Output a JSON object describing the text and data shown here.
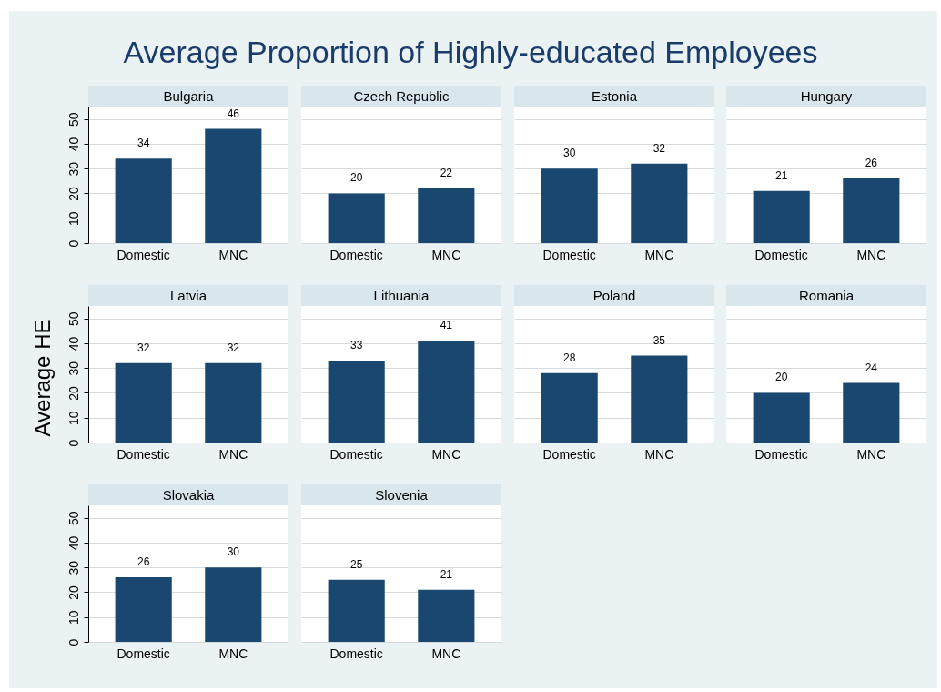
{
  "chart_data": [
    {
      "type": "other",
      "title": "Average Proportion of Highly-educated Employees",
      "ylabel": "Average HE"
    },
    {
      "type": "bar",
      "title": "Bulgaria",
      "categories": [
        "Domestic",
        "MNC"
      ],
      "values": [
        34,
        46
      ],
      "color": "#1a476f",
      "ylim": [
        0,
        55
      ],
      "yticks": [
        0,
        10,
        20,
        30,
        40,
        50
      ],
      "grid": "y",
      "data_labels": true
    },
    {
      "type": "bar",
      "title": "Czech Republic",
      "categories": [
        "Domestic",
        "MNC"
      ],
      "values": [
        20,
        22
      ],
      "color": "#1a476f",
      "ylim": [
        0,
        55
      ],
      "yticks": [
        0,
        10,
        20,
        30,
        40,
        50
      ],
      "grid": "y",
      "data_labels": true,
      "tick_labels": "x"
    },
    {
      "type": "bar",
      "title": "Estonia",
      "categories": [
        "Domestic",
        "MNC"
      ],
      "values": [
        30,
        32
      ],
      "color": "#1a476f",
      "ylim": [
        0,
        55
      ],
      "yticks": [
        0,
        10,
        20,
        30,
        40,
        50
      ],
      "grid": "y",
      "data_labels": true,
      "tick_labels": "x"
    },
    {
      "type": "bar",
      "title": "Hungary",
      "categories": [
        "Domestic",
        "MNC"
      ],
      "values": [
        21,
        26
      ],
      "color": "#1a476f",
      "ylim": [
        0,
        55
      ],
      "yticks": [
        0,
        10,
        20,
        30,
        40,
        50
      ],
      "grid": "y",
      "data_labels": true,
      "tick_labels": "x"
    },
    {
      "type": "bar",
      "title": "Latvia",
      "categories": [
        "Domestic",
        "MNC"
      ],
      "values": [
        32,
        32
      ],
      "color": "#1a476f",
      "ylim": [
        0,
        55
      ],
      "yticks": [
        0,
        10,
        20,
        30,
        40,
        50
      ],
      "grid": "y",
      "data_labels": true
    },
    {
      "type": "bar",
      "title": "Lithuania",
      "categories": [
        "Domestic",
        "MNC"
      ],
      "values": [
        33,
        41
      ],
      "color": "#1a476f",
      "ylim": [
        0,
        55
      ],
      "yticks": [
        0,
        10,
        20,
        30,
        40,
        50
      ],
      "grid": "y",
      "data_labels": true,
      "tick_labels": "x"
    },
    {
      "type": "bar",
      "title": "Poland",
      "categories": [
        "Domestic",
        "MNC"
      ],
      "values": [
        28,
        35
      ],
      "color": "#1a476f",
      "ylim": [
        0,
        55
      ],
      "yticks": [
        0,
        10,
        20,
        30,
        40,
        50
      ],
      "grid": "y",
      "data_labels": true,
      "tick_labels": "x"
    },
    {
      "type": "bar",
      "title": "Romania",
      "categories": [
        "Domestic",
        "MNC"
      ],
      "values": [
        20,
        24
      ],
      "color": "#1a476f",
      "ylim": [
        0,
        55
      ],
      "yticks": [
        0,
        10,
        20,
        30,
        40,
        50
      ],
      "grid": "y",
      "data_labels": true,
      "tick_labels": "x"
    },
    {
      "type": "bar",
      "title": "Slovakia",
      "categories": [
        "Domestic",
        "MNC"
      ],
      "values": [
        26,
        30
      ],
      "color": "#1a476f",
      "ylim": [
        0,
        55
      ],
      "yticks": [
        0,
        10,
        20,
        30,
        40,
        50
      ],
      "grid": "y",
      "data_labels": true
    },
    {
      "type": "bar",
      "title": "Slovenia",
      "categories": [
        "Domestic",
        "MNC"
      ],
      "values": [
        25,
        21
      ],
      "color": "#1a476f",
      "ylim": [
        0,
        55
      ],
      "yticks": [
        0,
        10,
        20,
        30,
        40,
        50
      ],
      "grid": "y",
      "data_labels": true,
      "tick_labels": "x"
    }
  ]
}
